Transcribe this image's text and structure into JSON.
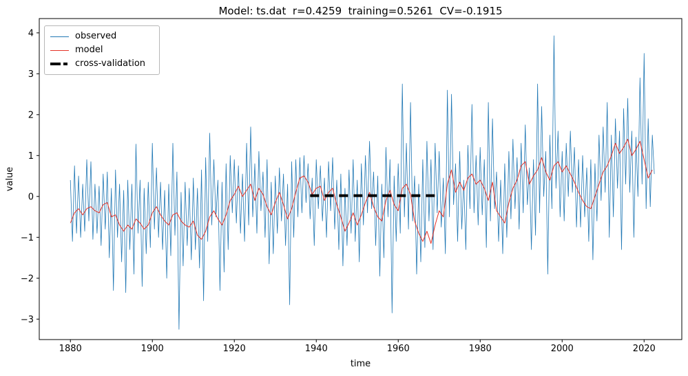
{
  "figure": {
    "title": "Model: ts.dat  r=0.4259  training=0.5261  CV=-0.1915",
    "background": "#ffffff",
    "spine_color": "#000000"
  },
  "legend": {
    "position": "upper left",
    "items": [
      {
        "label": "observed",
        "color": "#1f77b4",
        "style": "thin-line"
      },
      {
        "label": "model",
        "color": "#e53126",
        "style": "thin-line"
      },
      {
        "label": "cross-validation",
        "color": "#000000",
        "style": "thick-dash"
      }
    ]
  },
  "axes": {
    "xlabel": "time",
    "ylabel": "value",
    "x_tick_years": [
      1880,
      1900,
      1920,
      1940,
      1960,
      1980,
      2000,
      2020
    ],
    "x_tick_labels": [
      "1880",
      "1900",
      "1920",
      "1940",
      "1960",
      "1980",
      "2000",
      "2020"
    ],
    "y_tick_values": [
      -3,
      -2,
      -1,
      0,
      1,
      2,
      3,
      4
    ],
    "y_tick_labels": [
      "−3",
      "−2",
      "−1",
      "0",
      "1",
      "2",
      "3",
      "4"
    ]
  },
  "chart_data": {
    "type": "line",
    "title": "Model: ts.dat  r=0.4259  training=0.5261  CV=-0.1915",
    "xlabel": "time",
    "ylabel": "value",
    "xlim": [
      1872.4,
      2029.2
    ],
    "ylim": [
      -3.5,
      4.35
    ],
    "grid": false,
    "legend_position": "upper left",
    "series": [
      {
        "name": "observed",
        "color": "#1f77b4",
        "line_width": 0.8,
        "x_start": 1880.0,
        "x_step": 0.5,
        "values": [
          0.4,
          -1.1,
          0.75,
          -0.9,
          0.5,
          -1.0,
          0.3,
          -0.85,
          0.9,
          -0.6,
          0.85,
          -1.05,
          0.3,
          -0.9,
          0.25,
          -1.2,
          0.55,
          -0.8,
          0.6,
          -1.5,
          0.2,
          -2.3,
          0.65,
          -1.0,
          0.3,
          -1.6,
          0.15,
          -2.35,
          0.4,
          -1.3,
          0.3,
          -1.9,
          1.28,
          -0.9,
          0.4,
          -2.2,
          0.2,
          -1.4,
          0.35,
          -1.25,
          1.3,
          -0.8,
          0.7,
          -1.0,
          0.35,
          -1.3,
          0.15,
          -2.0,
          0.3,
          -1.45,
          1.3,
          -0.95,
          0.6,
          -3.25,
          0.1,
          -1.7,
          0.35,
          -1.2,
          0.2,
          -1.55,
          0.45,
          -1.3,
          0.2,
          -1.75,
          0.65,
          -2.55,
          0.95,
          -1.1,
          1.55,
          -0.7,
          0.9,
          -0.5,
          0.4,
          -2.3,
          0.35,
          -1.85,
          0.8,
          -1.3,
          1.0,
          -0.4,
          0.9,
          -0.65,
          0.75,
          -0.9,
          0.55,
          -1.1,
          1.3,
          -0.7,
          1.7,
          -0.5,
          0.8,
          -0.9,
          1.1,
          -0.35,
          0.6,
          -1.0,
          0.9,
          -1.65,
          0.35,
          -1.4,
          0.5,
          -0.9,
          0.7,
          -0.6,
          0.55,
          -1.2,
          0.3,
          -2.65,
          0.85,
          -1.0,
          0.9,
          -0.5,
          0.95,
          -0.4,
          1.0,
          -0.15,
          0.8,
          -0.55,
          0.45,
          -1.2,
          0.9,
          -0.3,
          0.75,
          -0.6,
          0.45,
          -1.0,
          0.85,
          -0.35,
          0.95,
          -0.8,
          0.4,
          -1.3,
          0.55,
          -1.7,
          0.2,
          -1.2,
          0.65,
          -0.9,
          0.9,
          -1.1,
          0.4,
          -1.6,
          0.8,
          -0.7,
          1.0,
          -0.4,
          1.35,
          -0.3,
          0.6,
          -1.2,
          0.5,
          -1.95,
          0.3,
          -1.5,
          1.2,
          -0.5,
          0.9,
          -2.85,
          0.5,
          -1.1,
          0.8,
          -0.9,
          2.75,
          -0.5,
          1.3,
          -0.8,
          2.3,
          -0.6,
          0.5,
          -1.9,
          0.3,
          -1.6,
          0.9,
          -1.25,
          1.35,
          -0.6,
          0.9,
          -1.3,
          1.3,
          -0.4,
          1.1,
          -0.75,
          0.45,
          -1.4,
          2.6,
          -0.5,
          2.5,
          -0.2,
          0.8,
          -1.1,
          1.1,
          -0.8,
          0.4,
          -1.3,
          1.25,
          -0.3,
          2.25,
          -0.4,
          1.0,
          -0.7,
          1.2,
          -0.45,
          0.9,
          -1.25,
          2.3,
          -0.6,
          1.9,
          -0.3,
          0.6,
          -1.1,
          0.4,
          -1.4,
          0.8,
          -1.0,
          1.1,
          -0.55,
          1.4,
          -0.3,
          0.95,
          -0.8,
          1.3,
          -0.4,
          1.75,
          -0.2,
          0.7,
          -1.3,
          0.9,
          -0.95,
          2.75,
          -0.4,
          2.2,
          0.0,
          1.1,
          -1.9,
          1.5,
          -0.3,
          3.93,
          0.2,
          1.6,
          -0.5,
          1.1,
          -0.6,
          1.3,
          0.0,
          1.6,
          0.1,
          1.2,
          -0.75,
          0.9,
          -0.75,
          1.0,
          -0.5,
          0.7,
          -1.1,
          0.9,
          -1.55,
          0.8,
          -0.6,
          1.5,
          -0.1,
          1.7,
          0.1,
          2.3,
          -1.0,
          1.5,
          -0.5,
          1.9,
          0.2,
          1.6,
          -1.3,
          2.15,
          0.3,
          2.4,
          0.1,
          1.6,
          -1.0,
          1.45,
          0.0,
          2.9,
          0.3,
          3.5,
          -0.3,
          1.9,
          -0.25,
          1.5,
          0.55
        ]
      },
      {
        "name": "model",
        "color": "#e53126",
        "line_width": 1.0,
        "x_start": 1880.0,
        "x_step": 1.0,
        "values": [
          -0.65,
          -0.4,
          -0.3,
          -0.45,
          -0.3,
          -0.25,
          -0.35,
          -0.4,
          -0.2,
          -0.15,
          -0.5,
          -0.45,
          -0.7,
          -0.85,
          -0.7,
          -0.8,
          -0.55,
          -0.65,
          -0.8,
          -0.7,
          -0.4,
          -0.25,
          -0.45,
          -0.6,
          -0.7,
          -0.45,
          -0.4,
          -0.6,
          -0.7,
          -0.75,
          -0.6,
          -0.95,
          -1.05,
          -0.85,
          -0.5,
          -0.35,
          -0.55,
          -0.7,
          -0.45,
          -0.1,
          0.05,
          0.25,
          0.0,
          0.15,
          0.3,
          -0.1,
          0.2,
          0.05,
          -0.25,
          -0.45,
          -0.15,
          0.1,
          -0.2,
          -0.55,
          -0.3,
          0.1,
          0.45,
          0.5,
          0.35,
          0.05,
          0.2,
          0.25,
          -0.1,
          0.1,
          0.2,
          -0.2,
          -0.5,
          -0.85,
          -0.65,
          -0.4,
          -0.7,
          -0.45,
          -0.15,
          0.1,
          -0.25,
          -0.5,
          -0.6,
          -0.1,
          0.15,
          -0.2,
          -0.35,
          0.2,
          0.3,
          0.05,
          -0.6,
          -0.9,
          -1.1,
          -0.85,
          -1.15,
          -0.7,
          -0.35,
          -0.5,
          0.3,
          0.65,
          0.1,
          0.35,
          0.15,
          0.45,
          0.55,
          0.3,
          0.4,
          0.2,
          -0.1,
          0.35,
          -0.35,
          -0.5,
          -0.65,
          -0.15,
          0.2,
          0.4,
          0.75,
          0.85,
          0.3,
          0.5,
          0.65,
          0.95,
          0.6,
          0.4,
          0.75,
          0.85,
          0.6,
          0.75,
          0.55,
          0.35,
          0.1,
          -0.1,
          -0.25,
          -0.3,
          0.0,
          0.3,
          0.6,
          0.75,
          1.0,
          1.3,
          1.05,
          1.2,
          1.4,
          1.0,
          1.15,
          1.35,
          0.9,
          0.45,
          0.65
        ]
      },
      {
        "name": "cross-validation",
        "color": "#000000",
        "line_width": 4,
        "dash": [
          13,
          8
        ],
        "x": [
          1938.5,
          1970.0
        ],
        "y": [
          0.02,
          0.02
        ]
      }
    ]
  }
}
